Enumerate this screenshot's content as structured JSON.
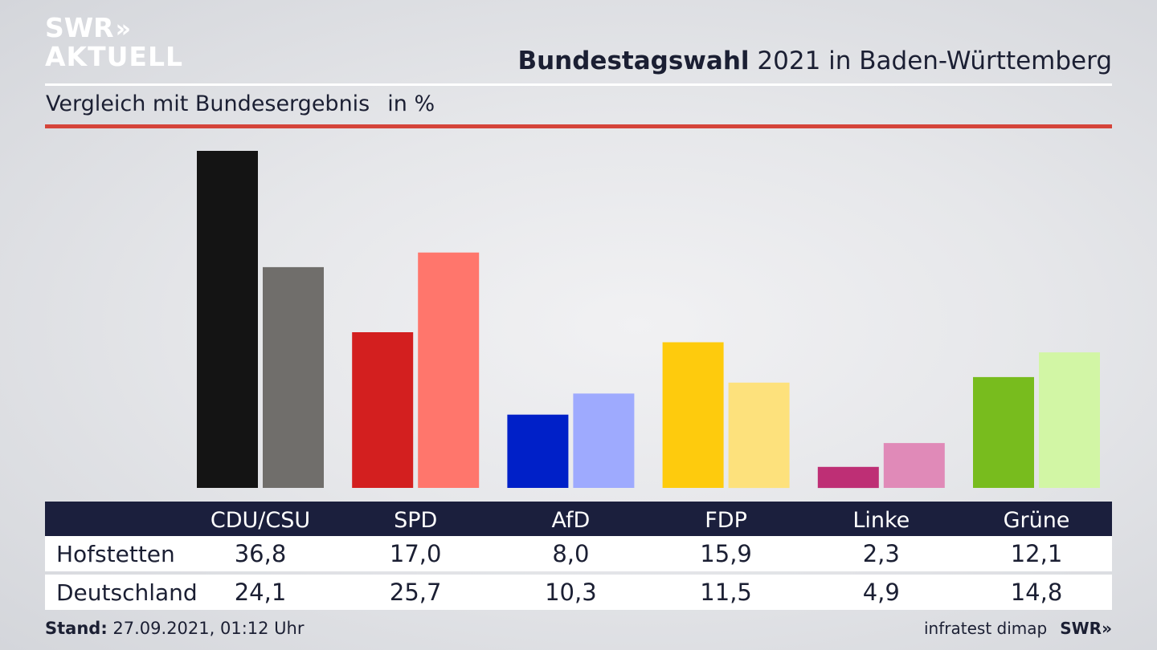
{
  "header": {
    "logo_line1": "SWR",
    "logo_arrows": "»",
    "logo_line2": "AKTUELL",
    "title_bold": "Bundestagswahl",
    "title_rest": " 2021 in Baden-Württemberg",
    "subtitle": "Vergleich mit Bundesergebnis",
    "unit": "in %"
  },
  "chart_data": {
    "type": "bar",
    "title": "Bundestagswahl 2021 in Baden-Württemberg",
    "subtitle": "Vergleich mit Bundesergebnis",
    "ylabel": "in %",
    "categories": [
      "CDU/CSU",
      "SPD",
      "AfD",
      "FDP",
      "Linke",
      "Grüne"
    ],
    "series": [
      {
        "name": "Hofstetten",
        "values": [
          36.8,
          17.0,
          8.0,
          15.9,
          2.3,
          12.1
        ],
        "labels": [
          "36,8",
          "17,0",
          "8,0",
          "15,9",
          "2,3",
          "12,1"
        ],
        "colors": [
          "#141414",
          "#d31f1f",
          "#0020c8",
          "#fecb0d",
          "#be2f75",
          "#78bc1e"
        ]
      },
      {
        "name": "Deutschland",
        "values": [
          24.1,
          25.7,
          10.3,
          11.5,
          4.9,
          14.8
        ],
        "labels": [
          "24,1",
          "25,7",
          "10,3",
          "11,5",
          "4,9",
          "14,8"
        ],
        "colors": [
          "#706e6b",
          "#ff766c",
          "#9eaafe",
          "#fde17c",
          "#e08ab8",
          "#d2f6a5"
        ]
      }
    ],
    "ylim": [
      0,
      36.8
    ],
    "grid": false,
    "legend": "table below chart"
  },
  "footer": {
    "stand_label": "Stand:",
    "stand_value": " 27.09.2021, 01:12 Uhr",
    "source": "infratest dimap",
    "brand": "SWR»"
  }
}
